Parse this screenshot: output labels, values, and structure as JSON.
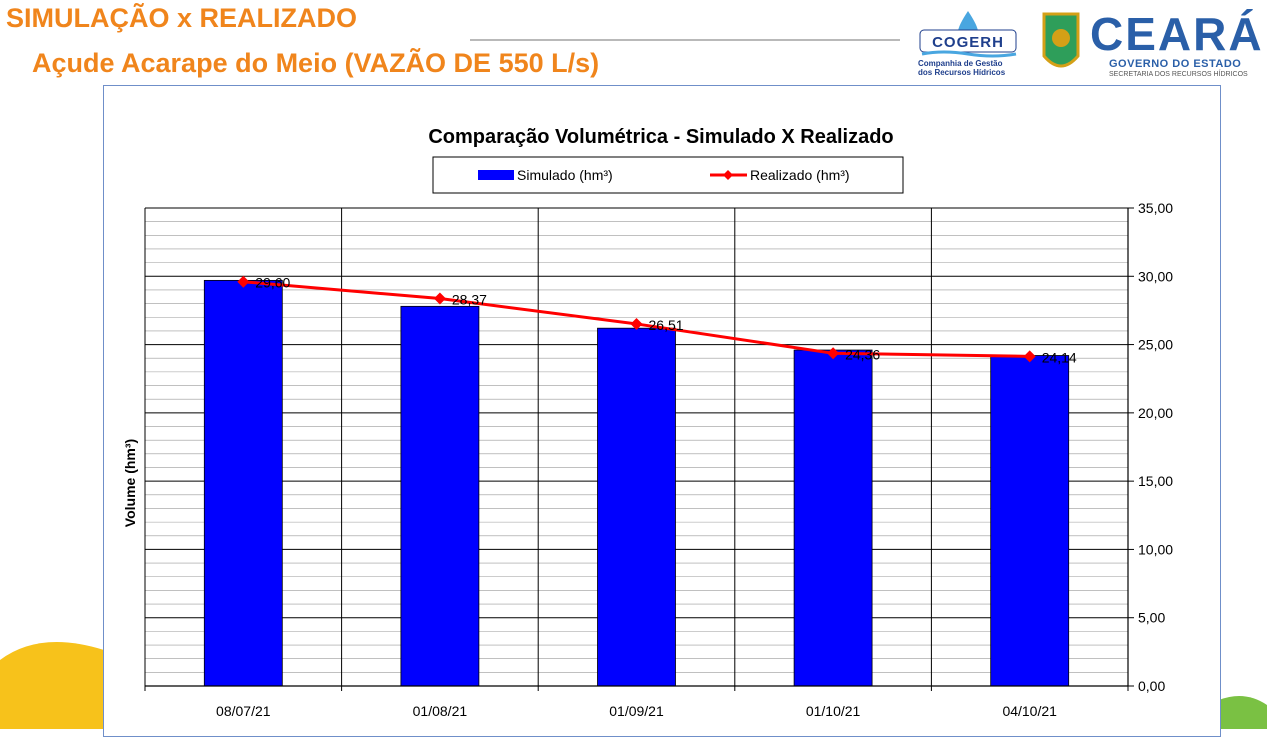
{
  "header": {
    "title": "SIMULAÇÃO x REALIZADO",
    "subtitle": "Açude Acarape do Meio (VAZÃO DE 550 L/s)"
  },
  "logos": {
    "cogerh_name": "COGERH",
    "cogerh_subtitle_line1": "Companhia de Gestão",
    "cogerh_subtitle_line2": "dos Recursos Hídricos",
    "state_name": "CEARÁ",
    "state_government": "GOVERNO DO ESTADO",
    "state_secretariat": "SECRETARIA DOS RECURSOS HÍDRICOS"
  },
  "colors": {
    "title_orange": "#f0851c",
    "bar_blue": "#0000ff",
    "line_red": "#ff0000",
    "logo_blue": "#2a5fa8",
    "accent_green": "#7ac143",
    "accent_yellow": "#f7c21b"
  },
  "chart_data": {
    "type": "bar",
    "title": "Comparação Volumétrica - Simulado X Realizado",
    "ylabel": "Volume (hm³)",
    "xlabel": "",
    "categories": [
      "08/07/21",
      "01/08/21",
      "01/09/21",
      "01/10/21",
      "04/10/21"
    ],
    "series": [
      {
        "name": "Simulado (hm³)",
        "type": "bar",
        "values": [
          29.7,
          27.8,
          26.2,
          24.6,
          24.2
        ]
      },
      {
        "name": "Realizado (hm³)",
        "type": "line",
        "values": [
          29.6,
          28.37,
          26.51,
          24.36,
          24.14
        ],
        "data_labels": [
          "29,60",
          "28,37",
          "26,51",
          "24,36",
          "24,14"
        ]
      }
    ],
    "ylim": [
      0,
      35
    ],
    "yticks": [
      "0,00",
      "5,00",
      "10,00",
      "15,00",
      "20,00",
      "25,00",
      "30,00",
      "35,00"
    ],
    "y_axis_side": "right",
    "grid": true,
    "legend_position": "top"
  }
}
